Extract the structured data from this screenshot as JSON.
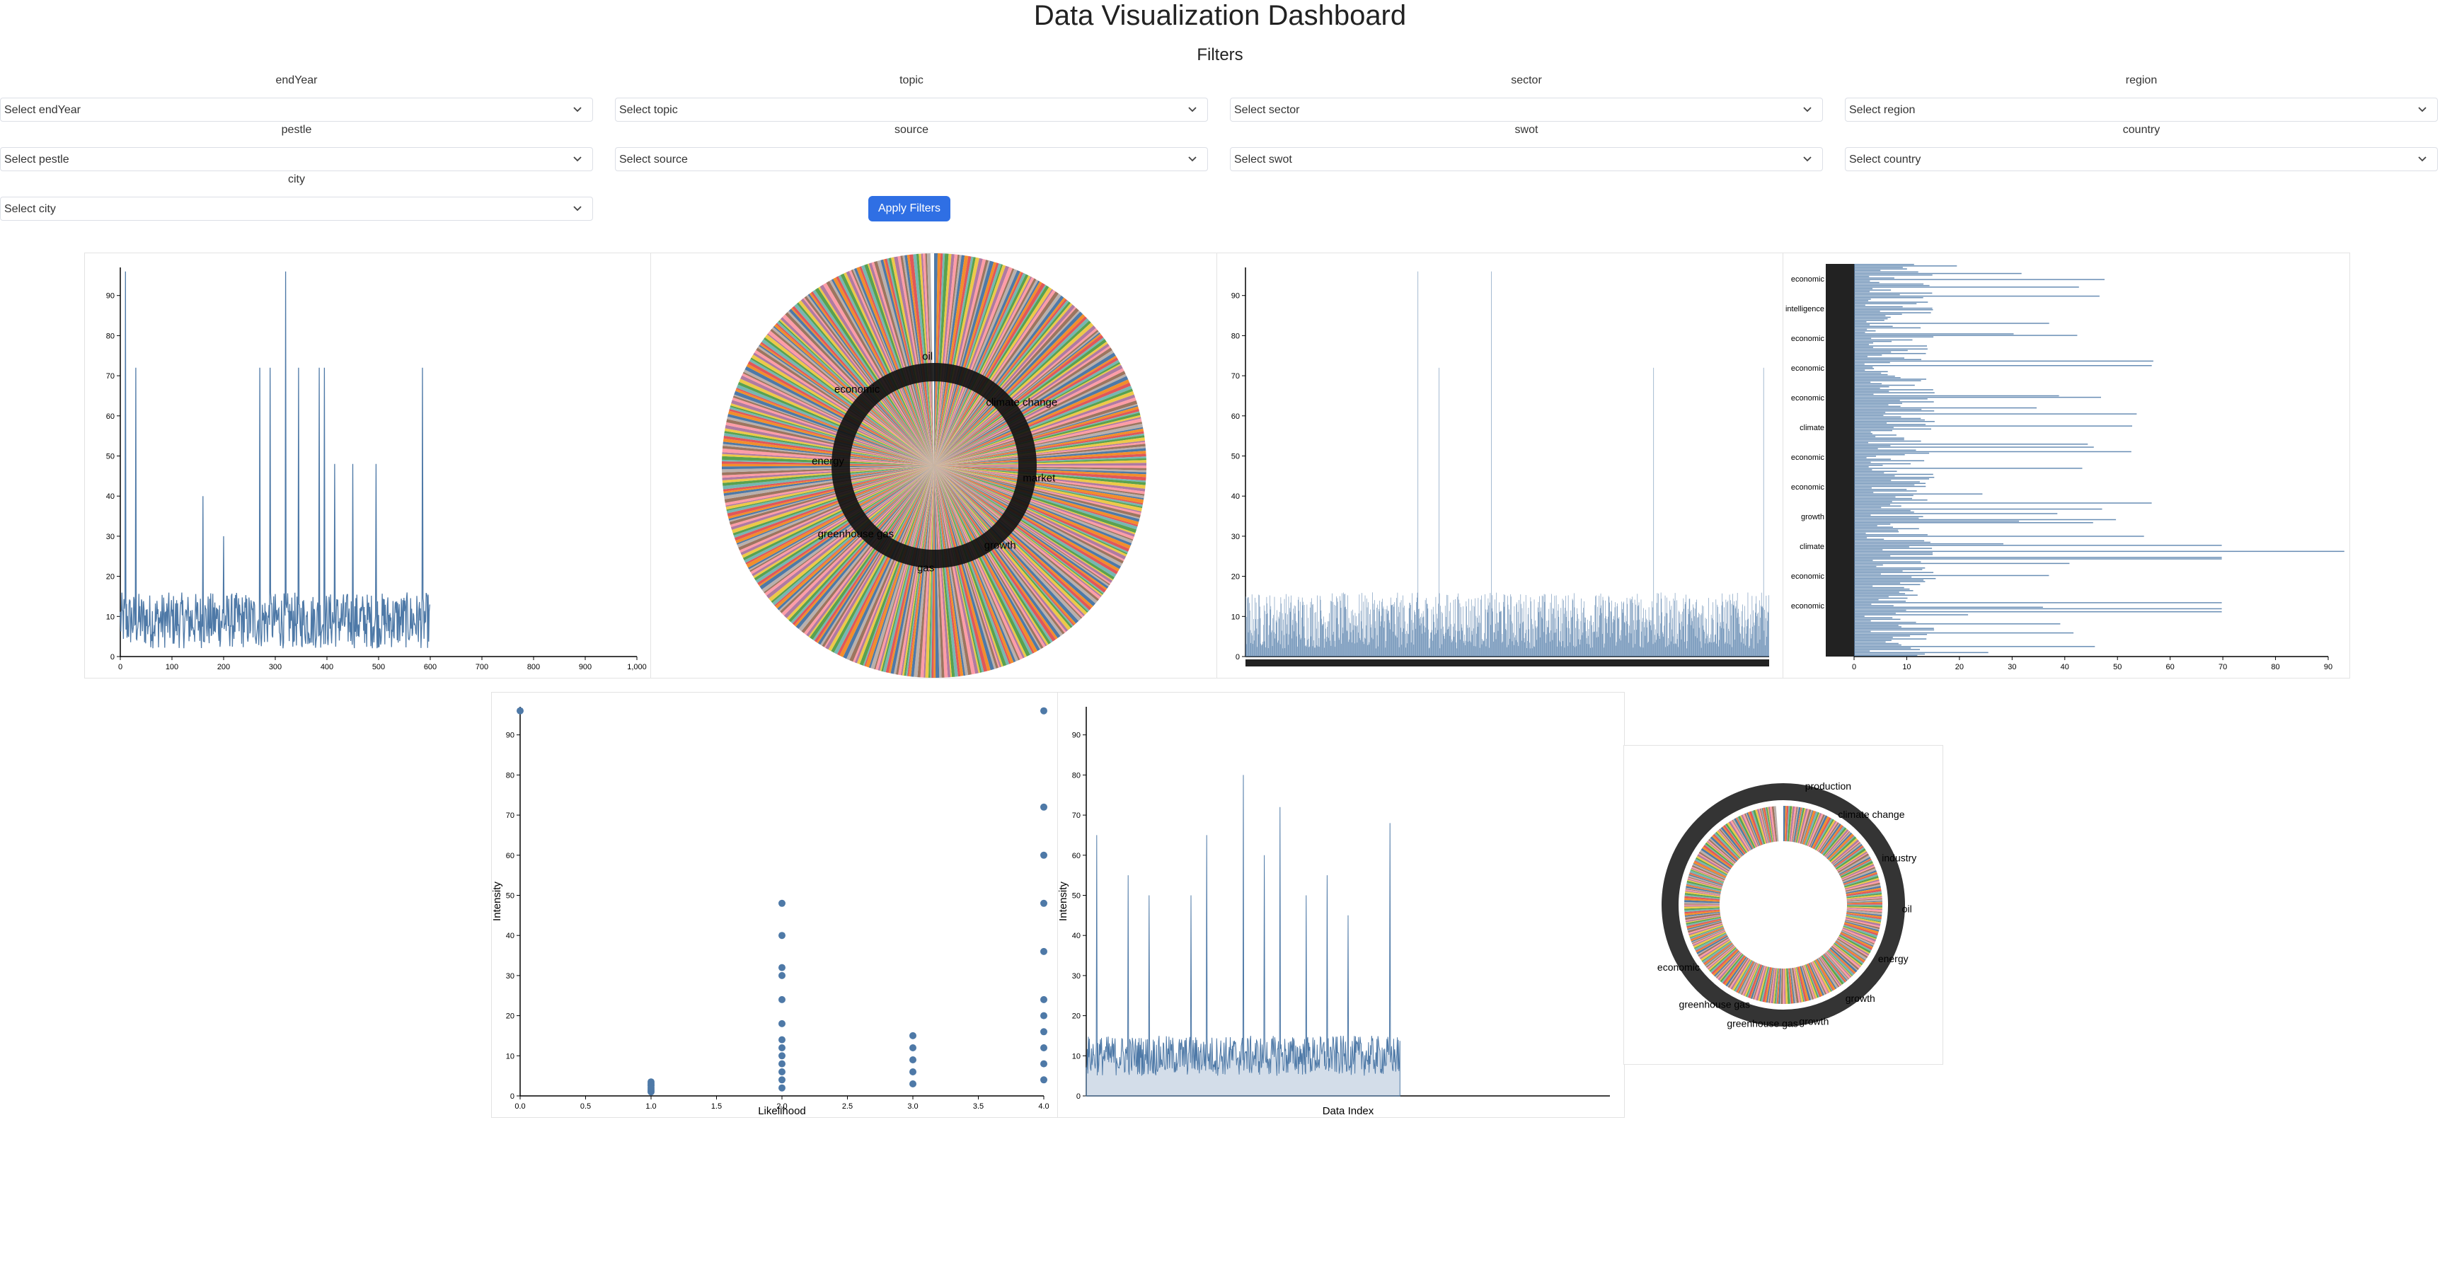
{
  "header": {
    "title": "Data Visualization Dashboard",
    "filters_heading": "Filters"
  },
  "filters": [
    {
      "name": "endYear",
      "placeholder": "Select endYear"
    },
    {
      "name": "topic",
      "placeholder": "Select topic"
    },
    {
      "name": "sector",
      "placeholder": "Select sector"
    },
    {
      "name": "region",
      "placeholder": "Select region"
    },
    {
      "name": "pestle",
      "placeholder": "Select pestle"
    },
    {
      "name": "source",
      "placeholder": "Select source"
    },
    {
      "name": "swot",
      "placeholder": "Select swot"
    },
    {
      "name": "country",
      "placeholder": "Select country"
    },
    {
      "name": "city",
      "placeholder": "Select city"
    }
  ],
  "apply_button": "Apply Filters",
  "icons": {
    "dropdown": "chevron-down-icon"
  },
  "colors": {
    "accent": "#2f6fe4",
    "series": "#4e79a7"
  },
  "chart_data": [
    {
      "type": "line",
      "ylim": [
        0,
        97
      ],
      "xlim": [
        0,
        1000
      ],
      "x_ticks": [
        0,
        100,
        200,
        300,
        400,
        500,
        600,
        700,
        800,
        900,
        "1,000"
      ],
      "y_ticks": [
        0,
        10,
        20,
        30,
        40,
        50,
        60,
        70,
        80,
        90
      ],
      "series": [
        {
          "color": "#4e79a7",
          "x_range": [
            0,
            600
          ],
          "peaks": [
            [
              10,
              96
            ],
            [
              30,
              72
            ],
            [
              160,
              40
            ],
            [
              200,
              30
            ],
            [
              270,
              72
            ],
            [
              290,
              72
            ],
            [
              320,
              96
            ],
            [
              345,
              72
            ],
            [
              385,
              72
            ],
            [
              395,
              72
            ],
            [
              415,
              48
            ],
            [
              450,
              48
            ],
            [
              495,
              48
            ],
            [
              585,
              72
            ]
          ],
          "baseline_range": [
            2,
            16
          ]
        }
      ]
    },
    {
      "type": "pie",
      "labels": [
        "climate change",
        "market",
        "growth",
        "gas",
        "greenhouse gas",
        "energy",
        "economic",
        "oil"
      ],
      "colors": [
        "#4e79a7",
        "#f28e2b",
        "#e15759",
        "#76b7b2",
        "#59a14f",
        "#edc948",
        "#b07aa1",
        "#ff9da7",
        "#9c755f",
        "#bab0ac"
      ]
    },
    {
      "type": "bar",
      "ylim": [
        0,
        97
      ],
      "y_ticks": [
        0,
        10,
        20,
        30,
        40,
        50,
        60,
        70,
        80,
        90
      ],
      "series": [
        {
          "color": "#4e79a7",
          "peaks": [
            [
              0.33,
              96
            ],
            [
              0.37,
              72
            ],
            [
              0.47,
              96
            ],
            [
              0.78,
              72
            ],
            [
              0.99,
              72
            ]
          ],
          "baseline_range": [
            2,
            16
          ]
        }
      ]
    },
    {
      "type": "bar",
      "orientation": "horizontal",
      "x_ticks": [
        0,
        10,
        20,
        30,
        40,
        50,
        60,
        70,
        80,
        90
      ],
      "labels": [
        "economic",
        "artificial intelligence",
        "economic",
        "economic",
        "economic",
        "climate",
        "economic",
        "economic",
        "growth",
        "climate",
        "economic",
        "economic"
      ],
      "series": [
        {
          "color": "#4e79a7",
          "max": 96
        }
      ]
    },
    {
      "type": "scatter",
      "xlabel": "Likelihood",
      "ylabel": "Intensity",
      "xlim": [
        0,
        4
      ],
      "ylim": [
        0,
        97
      ],
      "x_ticks": [
        "0.0",
        "0.5",
        "1.0",
        "1.5",
        "2.0",
        "2.5",
        "3.0",
        "3.5",
        "4.0"
      ],
      "y_ticks": [
        0,
        10,
        20,
        30,
        40,
        50,
        60,
        70,
        80,
        90
      ],
      "series": [
        {
          "color": "#4e79a7",
          "points": [
            [
              0,
              96
            ],
            [
              1,
              1
            ],
            [
              1,
              1.5
            ],
            [
              1,
              2
            ],
            [
              1,
              2.5
            ],
            [
              1,
              3
            ],
            [
              1,
              3.5
            ],
            [
              2,
              48
            ],
            [
              2,
              40
            ],
            [
              2,
              32
            ],
            [
              2,
              30
            ],
            [
              2,
              24
            ],
            [
              2,
              18
            ],
            [
              2,
              14
            ],
            [
              2,
              12
            ],
            [
              2,
              10
            ],
            [
              2,
              8
            ],
            [
              2,
              6
            ],
            [
              2,
              4
            ],
            [
              2,
              2
            ],
            [
              3,
              15
            ],
            [
              3,
              12
            ],
            [
              3,
              9
            ],
            [
              3,
              6
            ],
            [
              3,
              3
            ],
            [
              4,
              96
            ],
            [
              4,
              72
            ],
            [
              4,
              60
            ],
            [
              4,
              48
            ],
            [
              4,
              36
            ],
            [
              4,
              24
            ],
            [
              4,
              20
            ],
            [
              4,
              16
            ],
            [
              4,
              12
            ],
            [
              4,
              8
            ],
            [
              4,
              4
            ]
          ]
        }
      ]
    },
    {
      "type": "area",
      "xlabel": "Data Index",
      "ylabel": "Intensity",
      "xlim": [
        0,
        1000
      ],
      "ylim": [
        0,
        97
      ],
      "y_ticks": [
        0,
        10,
        20,
        30,
        40,
        50,
        60,
        70,
        80,
        90
      ],
      "series": [
        {
          "color": "#4e79a7",
          "x_range": [
            0,
            600
          ],
          "peaks": [
            [
              20,
              65
            ],
            [
              80,
              55
            ],
            [
              120,
              50
            ],
            [
              200,
              50
            ],
            [
              230,
              65
            ],
            [
              300,
              80
            ],
            [
              340,
              60
            ],
            [
              370,
              72
            ],
            [
              420,
              50
            ],
            [
              460,
              55
            ],
            [
              500,
              45
            ],
            [
              580,
              68
            ]
          ],
          "baseline_range": [
            5,
            15
          ]
        }
      ]
    },
    {
      "type": "pie",
      "donut": true,
      "labels": [
        "production",
        "climate change",
        "industry",
        "oil",
        "energy",
        "growth",
        "growth",
        "greenhouse gas",
        "greenhouse gas",
        "economic"
      ],
      "colors": [
        "#4e79a7",
        "#f28e2b",
        "#e15759",
        "#76b7b2",
        "#59a14f",
        "#edc948",
        "#b07aa1",
        "#ff9da7",
        "#9c755f",
        "#bab0ac"
      ]
    }
  ]
}
